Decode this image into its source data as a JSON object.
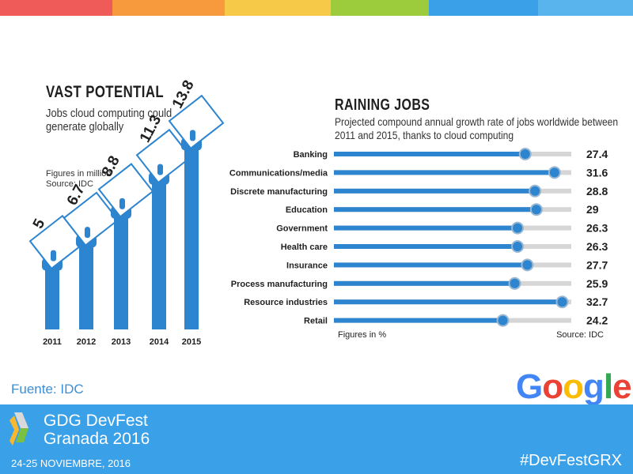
{
  "colors": {
    "top_bar": [
      "#ef5b58",
      "#f79a3e",
      "#f7c948",
      "#9ccc3b",
      "#3aa0e8",
      "#59b4ee"
    ],
    "accent_blue": "#2d84cf",
    "track_grey": "#d6d6d6",
    "footer_blue": "#3aa0e8"
  },
  "left_panel": {
    "title": "VAST POTENTIAL",
    "subtitle": "Jobs cloud computing could generate globally",
    "note_line1": "Figures in million",
    "note_line2": "Source: IDC"
  },
  "right_panel": {
    "title": "RAINING JOBS",
    "subtitle": "Projected compound annual growth rate of jobs worldwide between 2011 and 2015, thanks to cloud computing",
    "footnote_left": "Figures in %",
    "footnote_right": "Source: IDC"
  },
  "chart_data": [
    {
      "type": "bar",
      "title": "VAST POTENTIAL",
      "subtitle": "Jobs cloud computing could generate globally",
      "categories": [
        "2011",
        "2012",
        "2013",
        "2014",
        "2015"
      ],
      "values": [
        5,
        6.7,
        8.8,
        11.3,
        13.8
      ],
      "value_labels": [
        "5",
        "6.7",
        "8.8",
        "11.3",
        "13.8"
      ],
      "ylim": [
        0,
        14
      ],
      "grid": false,
      "legend": "none"
    },
    {
      "type": "bar",
      "orientation": "horizontal",
      "title": "RAINING JOBS",
      "subtitle": "Projected compound annual growth rate of jobs worldwide between 2011 and 2015, thanks to cloud computing",
      "categories": [
        "Banking",
        "Communications/media",
        "Discrete manufacturing",
        "Education",
        "Government",
        "Health care",
        "Insurance",
        "Process manufacturing",
        "Resource industries",
        "Retail"
      ],
      "values": [
        27.4,
        31.6,
        28.8,
        29,
        26.3,
        26.3,
        27.7,
        25.9,
        32.7,
        24.2
      ],
      "value_labels": [
        "27.4",
        "31.6",
        "28.8",
        "29",
        "26.3",
        "26.3",
        "27.7",
        "25.9",
        "32.7",
        "24.2"
      ],
      "xlim": [
        0,
        34
      ],
      "grid": false,
      "legend": "none"
    }
  ],
  "branding": {
    "source_caption": "Fuente: IDC",
    "google_letters": [
      "G",
      "o",
      "o",
      "g",
      "l",
      "e"
    ],
    "google_colors": [
      "#4285F4",
      "#EA4335",
      "#FBBC05",
      "#4285F4",
      "#34A853",
      "#EA4335"
    ],
    "event_line1": "GDG DevFest",
    "event_line2": "Granada 2016",
    "event_dates": "24-25 NOVIEMBRE, 2016",
    "hashtag": "#DevFestGRX"
  }
}
